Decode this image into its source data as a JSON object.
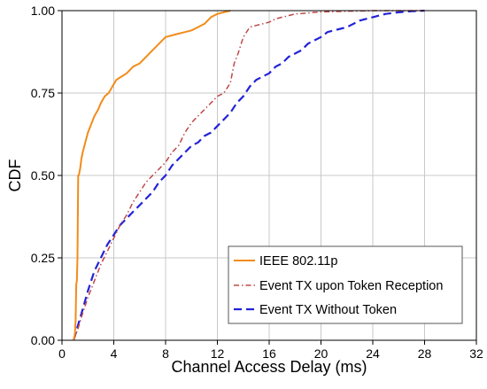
{
  "chart_data": {
    "type": "line",
    "xlabel": "Channel Access Delay (ms)",
    "ylabel": "CDF",
    "xlim": [
      0,
      32
    ],
    "ylim": [
      0,
      1
    ],
    "xticks": [
      0,
      4,
      8,
      12,
      16,
      20,
      24,
      28,
      32
    ],
    "yticks": [
      0,
      0.25,
      0.5,
      0.75,
      1
    ],
    "x_tick_labels": [
      "0",
      "4",
      "8",
      "12",
      "16",
      "20",
      "24",
      "28",
      "32"
    ],
    "y_tick_labels": [
      "0.00",
      "0.25",
      "0.50",
      "0.75",
      "1.00"
    ],
    "grid": true,
    "legend_position": "bottom-right",
    "series": [
      {
        "name": "IEEE 802.11p",
        "color": "#f28c1a",
        "style": "solid",
        "x": [
          0.9,
          1.0,
          1.05,
          1.1,
          1.15,
          1.2,
          1.25,
          1.3,
          1.35,
          1.4,
          1.5,
          1.6,
          1.8,
          2.0,
          2.2,
          2.5,
          2.8,
          3.0,
          3.3,
          3.6,
          3.9,
          4.2,
          4.6,
          5.0,
          5.5,
          6.0,
          6.5,
          7.0,
          7.5,
          8.0,
          8.5,
          9.0,
          9.5,
          10.0,
          10.5,
          11.0,
          11.5,
          12.0,
          12.5,
          13.0
        ],
        "y": [
          0.0,
          0.02,
          0.06,
          0.17,
          0.18,
          0.25,
          0.5,
          0.5,
          0.51,
          0.52,
          0.55,
          0.57,
          0.6,
          0.63,
          0.65,
          0.68,
          0.7,
          0.72,
          0.74,
          0.75,
          0.77,
          0.79,
          0.8,
          0.81,
          0.83,
          0.84,
          0.86,
          0.88,
          0.9,
          0.92,
          0.925,
          0.93,
          0.935,
          0.94,
          0.95,
          0.96,
          0.98,
          0.99,
          0.995,
          1.0
        ]
      },
      {
        "name": "Event TX upon Token Reception",
        "color": "#c04848",
        "style": "dashdot",
        "x": [
          0.9,
          1.2,
          1.5,
          2.0,
          2.5,
          3.0,
          3.5,
          4.0,
          4.5,
          5.0,
          5.5,
          6.0,
          6.5,
          7.0,
          7.5,
          8.0,
          8.5,
          9.0,
          9.5,
          10.0,
          10.5,
          11.0,
          11.5,
          12.0,
          12.5,
          13.0,
          13.3,
          13.6,
          14.0,
          14.5,
          15.0,
          15.5,
          16.0,
          16.5,
          17.0,
          17.5,
          18.0,
          18.5,
          19.0,
          19.5,
          20.0,
          21.0,
          22.0,
          23.0,
          24.0,
          25.0,
          26.0,
          27.0,
          28.0
        ],
        "y": [
          0.0,
          0.03,
          0.07,
          0.13,
          0.18,
          0.23,
          0.27,
          0.31,
          0.35,
          0.38,
          0.42,
          0.45,
          0.48,
          0.5,
          0.52,
          0.54,
          0.57,
          0.59,
          0.63,
          0.66,
          0.68,
          0.7,
          0.72,
          0.74,
          0.75,
          0.78,
          0.84,
          0.87,
          0.92,
          0.95,
          0.955,
          0.96,
          0.965,
          0.975,
          0.98,
          0.985,
          0.99,
          0.991,
          0.993,
          0.995,
          0.996,
          0.997,
          0.998,
          0.999,
          1.0,
          1.0,
          1.0,
          1.0,
          1.0
        ]
      },
      {
        "name": "Event TX Without Token",
        "color": "#2323d8",
        "style": "dashed",
        "x": [
          0.9,
          1.2,
          1.5,
          2.0,
          2.5,
          3.0,
          3.5,
          4.0,
          4.5,
          5.0,
          5.5,
          6.0,
          6.5,
          7.0,
          7.5,
          8.0,
          8.5,
          9.0,
          9.5,
          10.0,
          10.5,
          11.0,
          11.5,
          12.0,
          12.5,
          13.0,
          13.5,
          14.0,
          14.5,
          15.0,
          15.5,
          16.0,
          16.5,
          17.0,
          17.5,
          18.0,
          18.5,
          19.0,
          19.5,
          20.0,
          20.5,
          21.0,
          21.5,
          22.0,
          23.0,
          24.0,
          25.0,
          26.0,
          27.0,
          28.0
        ],
        "y": [
          0.0,
          0.04,
          0.08,
          0.15,
          0.21,
          0.25,
          0.29,
          0.32,
          0.35,
          0.37,
          0.39,
          0.41,
          0.43,
          0.45,
          0.48,
          0.5,
          0.53,
          0.55,
          0.57,
          0.59,
          0.6,
          0.62,
          0.63,
          0.65,
          0.67,
          0.69,
          0.72,
          0.74,
          0.77,
          0.79,
          0.8,
          0.81,
          0.83,
          0.84,
          0.86,
          0.87,
          0.88,
          0.9,
          0.91,
          0.92,
          0.935,
          0.94,
          0.945,
          0.95,
          0.97,
          0.98,
          0.99,
          0.995,
          0.998,
          1.0
        ]
      }
    ]
  }
}
